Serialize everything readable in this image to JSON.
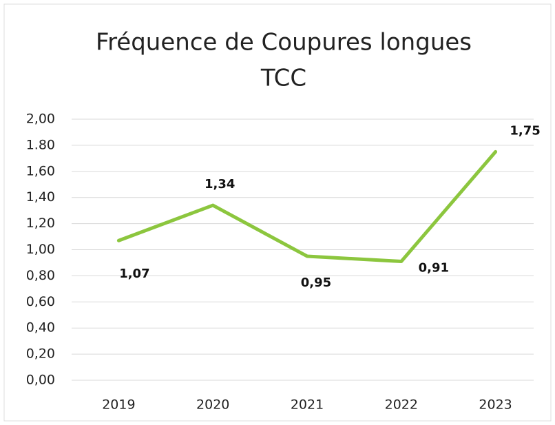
{
  "chart_data": {
    "type": "line",
    "title": [
      "Fréquence de Coupures longues",
      "TCC"
    ],
    "categories": [
      "2019",
      "2020",
      "2021",
      "2022",
      "2023"
    ],
    "series": [
      {
        "color": "#8cc63e",
        "values": [
          1.07,
          1.34,
          0.95,
          0.91,
          1.75
        ],
        "value_labels": [
          "1,07",
          "1,34",
          "0,95",
          "0,91",
          "1,75"
        ]
      }
    ],
    "ylim": [
      0,
      2
    ],
    "yticks": [
      {
        "value": 0,
        "label": "0,00"
      },
      {
        "value": 0.2,
        "label": "0,20"
      },
      {
        "value": 0.4,
        "label": "0,40"
      },
      {
        "value": 0.6,
        "label": "0,60"
      },
      {
        "value": 0.8,
        "label": "0,80"
      },
      {
        "value": 1,
        "label": "1,00"
      },
      {
        "value": 1.2,
        "label": "1,20"
      },
      {
        "value": 1.4,
        "label": "1,40"
      },
      {
        "value": 1.6,
        "label": "1,60"
      },
      {
        "value": 1.8,
        "label": "1.80"
      },
      {
        "value": 2,
        "label": "2,00"
      }
    ],
    "grid": true
  }
}
